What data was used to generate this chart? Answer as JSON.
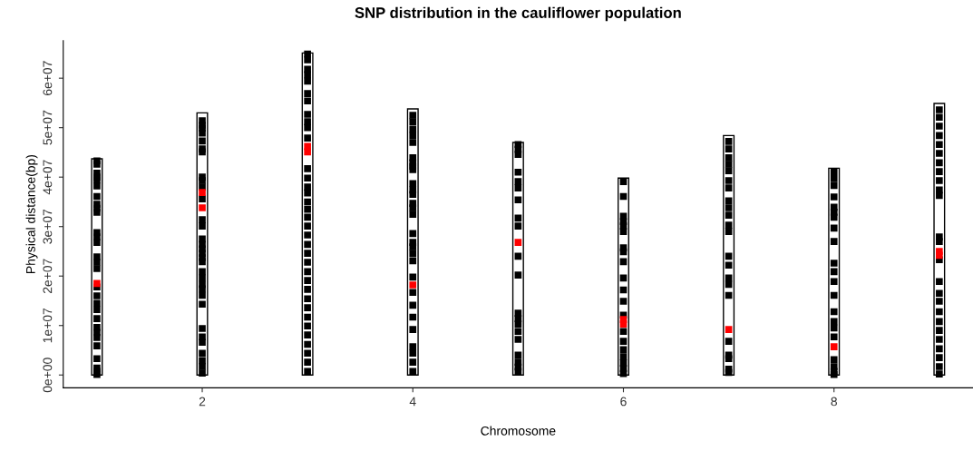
{
  "chart_data": {
    "type": "bar",
    "title": "SNP distribution in the cauliflower population",
    "xlabel": "Chromosome",
    "ylabel": "Physical distance(bp)",
    "x": [
      1,
      2,
      3,
      4,
      5,
      6,
      7,
      8,
      9
    ],
    "xlim": [
      0.68,
      9.32
    ],
    "xticks": [
      2,
      4,
      6,
      8
    ],
    "ylim": [
      -2600000,
      67600000
    ],
    "yticks": [
      {
        "value": 0,
        "label": "0e+00"
      },
      {
        "value": 10000000,
        "label": "1e+07"
      },
      {
        "value": 20000000,
        "label": "2e+07"
      },
      {
        "value": 30000000,
        "label": "3e+07"
      },
      {
        "value": 40000000,
        "label": "4e+07"
      },
      {
        "value": 50000000,
        "label": "5e+07"
      },
      {
        "value": 60000000,
        "label": "6e+07"
      }
    ],
    "grid": false,
    "series": [
      {
        "color": "#ffffff",
        "values": [
          43700000,
          53000000,
          65100000,
          53800000,
          47000000,
          39800000,
          48400000,
          41800000,
          54900000
        ]
      },
      {
        "type": "scatter",
        "marker": "square",
        "color": "#000000",
        "x": [
          1,
          1,
          1,
          1,
          1,
          1,
          1,
          1,
          1,
          1,
          1,
          1,
          1,
          1,
          1,
          1,
          1,
          1,
          1,
          1,
          1,
          1,
          1,
          1,
          1,
          1,
          1,
          1,
          1,
          2,
          2,
          2,
          2,
          2,
          2,
          2,
          2,
          2,
          2,
          2,
          2,
          2,
          2,
          2,
          2,
          2,
          2,
          2,
          2,
          2,
          2,
          2,
          2,
          2,
          2,
          2,
          2,
          2,
          2,
          2,
          2,
          3,
          3,
          3,
          3,
          3,
          3,
          3,
          3,
          3,
          3,
          3,
          3,
          3,
          3,
          3,
          3,
          3,
          3,
          3,
          3,
          3,
          3,
          3,
          3,
          3,
          3,
          3,
          3,
          3,
          3,
          3,
          3,
          3,
          3,
          3,
          4,
          4,
          4,
          4,
          4,
          4,
          4,
          4,
          4,
          4,
          4,
          4,
          4,
          4,
          4,
          4,
          4,
          4,
          4,
          4,
          4,
          4,
          4,
          4,
          4,
          4,
          4,
          4,
          4,
          5,
          5,
          5,
          5,
          5,
          5,
          5,
          5,
          5,
          5,
          5,
          5,
          5,
          5,
          5,
          5,
          5,
          5,
          5,
          5,
          6,
          6,
          6,
          6,
          6,
          6,
          6,
          6,
          6,
          6,
          6,
          6,
          6,
          6,
          6,
          6,
          6,
          6,
          6,
          6,
          7,
          7,
          7,
          7,
          7,
          7,
          7,
          7,
          7,
          7,
          7,
          7,
          7,
          7,
          7,
          7,
          7,
          7,
          7,
          7,
          7,
          7,
          8,
          8,
          8,
          8,
          8,
          8,
          8,
          8,
          8,
          8,
          8,
          8,
          8,
          8,
          8,
          8,
          8,
          8,
          8,
          8,
          8,
          9,
          9,
          9,
          9,
          9,
          9,
          9,
          9,
          9,
          9,
          9,
          9,
          9,
          9,
          9,
          9,
          9,
          9,
          9,
          9,
          9,
          9,
          9,
          9,
          9
        ],
        "values": [
          43300000,
          42600000,
          40800000,
          40000000,
          39400000,
          38200000,
          36100000,
          34500000,
          33700000,
          32900000,
          28800000,
          27900000,
          26800000,
          23900000,
          22800000,
          21500000,
          17800000,
          16000000,
          14500000,
          13200000,
          11400000,
          9600000,
          8600000,
          7600000,
          5900000,
          3300000,
          1400000,
          700000,
          100000,
          51400000,
          50500000,
          49900000,
          48900000,
          47300000,
          45700000,
          45100000,
          40000000,
          39300000,
          38000000,
          35600000,
          31400000,
          30100000,
          27500000,
          26400000,
          25500000,
          24600000,
          23700000,
          22900000,
          20900000,
          19600000,
          18300000,
          17400000,
          16100000,
          14300000,
          9400000,
          7700000,
          6600000,
          4400000,
          2900000,
          1700000,
          400000,
          64900000,
          63700000,
          61800000,
          60700000,
          59400000,
          56900000,
          55400000,
          52700000,
          51200000,
          50000000,
          47900000,
          41700000,
          39800000,
          38000000,
          36800000,
          35000000,
          33500000,
          31900000,
          30100000,
          28300000,
          26400000,
          24600000,
          22800000,
          20900000,
          19100000,
          17300000,
          15400000,
          13600000,
          11700000,
          9900000,
          8100000,
          6200000,
          4400000,
          2600000,
          700000,
          52500000,
          51200000,
          49700000,
          48400000,
          47000000,
          43900000,
          42900000,
          42200000,
          41500000,
          38700000,
          37400000,
          36500000,
          34700000,
          33800000,
          32500000,
          28600000,
          26800000,
          25900000,
          24600000,
          23100000,
          19800000,
          16700000,
          14100000,
          11700000,
          9200000,
          5700000,
          4400000,
          2600000,
          700000,
          46600000,
          45600000,
          44600000,
          41000000,
          39100000,
          37800000,
          35400000,
          31700000,
          30100000,
          24000000,
          20200000,
          12500000,
          11400000,
          10300000,
          8800000,
          7200000,
          4000000,
          2600000,
          1600000,
          700000,
          39100000,
          36100000,
          32100000,
          31000000,
          30100000,
          29000000,
          25700000,
          24900000,
          22900000,
          19600000,
          17200000,
          14900000,
          12100000,
          8800000,
          6800000,
          5100000,
          3700000,
          2400000,
          1300000,
          300000,
          47200000,
          45700000,
          43900000,
          42600000,
          41300000,
          39300000,
          37800000,
          35200000,
          33800000,
          32300000,
          30300000,
          29000000,
          24000000,
          22200000,
          19600000,
          18300000,
          16100000,
          6800000,
          4000000,
          3300000,
          1200000,
          500000,
          41100000,
          39700000,
          38300000,
          36000000,
          33900000,
          32900000,
          31900000,
          29700000,
          27000000,
          22600000,
          20900000,
          18900000,
          16100000,
          12800000,
          10800000,
          9500000,
          7700000,
          3100000,
          1700000,
          700000,
          100000,
          53600000,
          52100000,
          50300000,
          48400000,
          46600000,
          44800000,
          42900000,
          41100000,
          39300000,
          37400000,
          36300000,
          27900000,
          27000000,
          23300000,
          18900000,
          16500000,
          14900000,
          12800000,
          10800000,
          9000000,
          7200000,
          5300000,
          3500000,
          1700000,
          200000
        ]
      },
      {
        "type": "scatter",
        "marker": "square",
        "color": "#ff0000",
        "x": [
          1,
          2,
          2,
          3,
          3,
          4,
          5,
          6,
          6,
          7,
          8,
          9,
          9
        ],
        "values": [
          18500000,
          36900000,
          33800000,
          46200000,
          45100000,
          18200000,
          26800000,
          11200000,
          10300000,
          9200000,
          5700000,
          25000000,
          24200000
        ]
      }
    ]
  }
}
